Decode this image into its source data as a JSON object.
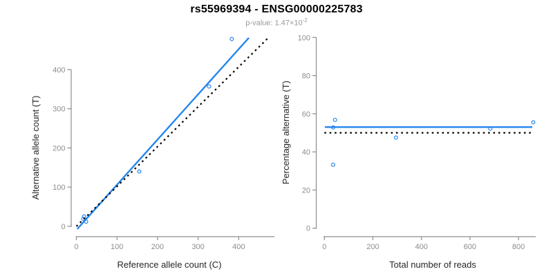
{
  "header": {
    "title": "rs55969394 - ENSG00000225783",
    "subtitle_main": "p-value: 1.47×10",
    "subtitle_exponent": "-2"
  },
  "style": {
    "accent_blue": "#2386ee",
    "line_black": "#000000",
    "axis_gray": "#8c8c8c",
    "tick_label_gray": "#8c8c8c",
    "axis_title_color": "#262626",
    "title_color": "#000000",
    "subtitle_gray": "#999999",
    "background": "#ffffff"
  },
  "chart_data": [
    {
      "type": "scatter",
      "name": "allele-count-plot",
      "xlabel": "Reference allele count (C)",
      "ylabel": "Alternative allele count (T)",
      "xticks": [
        0,
        100,
        200,
        300,
        400
      ],
      "yticks": [
        0,
        100,
        200,
        300,
        400
      ],
      "xlim": [
        0,
        488
      ],
      "ylim": [
        0,
        492
      ],
      "grid": false,
      "points": [
        [
          17,
          19
        ],
        [
          19,
          25
        ],
        [
          24,
          12
        ],
        [
          155,
          140
        ],
        [
          327,
          357
        ],
        [
          383,
          478
        ]
      ],
      "lines": [
        {
          "name": "fit-line",
          "style": "solid",
          "x1": 2,
          "y1": -7,
          "x2": 425,
          "y2": 481
        },
        {
          "name": "identity-line",
          "style": "dotted",
          "x1": 0,
          "y1": 0,
          "x2": 471,
          "y2": 479
        }
      ]
    },
    {
      "type": "scatter",
      "name": "percentage-plot",
      "xlabel": "Total number of reads",
      "ylabel": "Percentage alternative (T)",
      "xticks": [
        0,
        200,
        400,
        600,
        800
      ],
      "yticks": [
        0,
        20,
        40,
        60,
        80,
        100
      ],
      "xlim": [
        0,
        871
      ],
      "ylim": [
        0,
        100
      ],
      "grid": false,
      "points": [
        [
          36,
          52.8
        ],
        [
          44,
          56.8
        ],
        [
          36,
          33.3
        ],
        [
          295,
          47.5
        ],
        [
          684,
          52.2
        ],
        [
          861,
          55.5
        ]
      ],
      "lines": [
        {
          "name": "fit-line",
          "style": "solid",
          "x1": 2,
          "y1": 53,
          "x2": 857,
          "y2": 53
        },
        {
          "name": "null-line",
          "style": "dotted",
          "x1": 0,
          "y1": 50,
          "x2": 862,
          "y2": 50
        }
      ]
    }
  ]
}
